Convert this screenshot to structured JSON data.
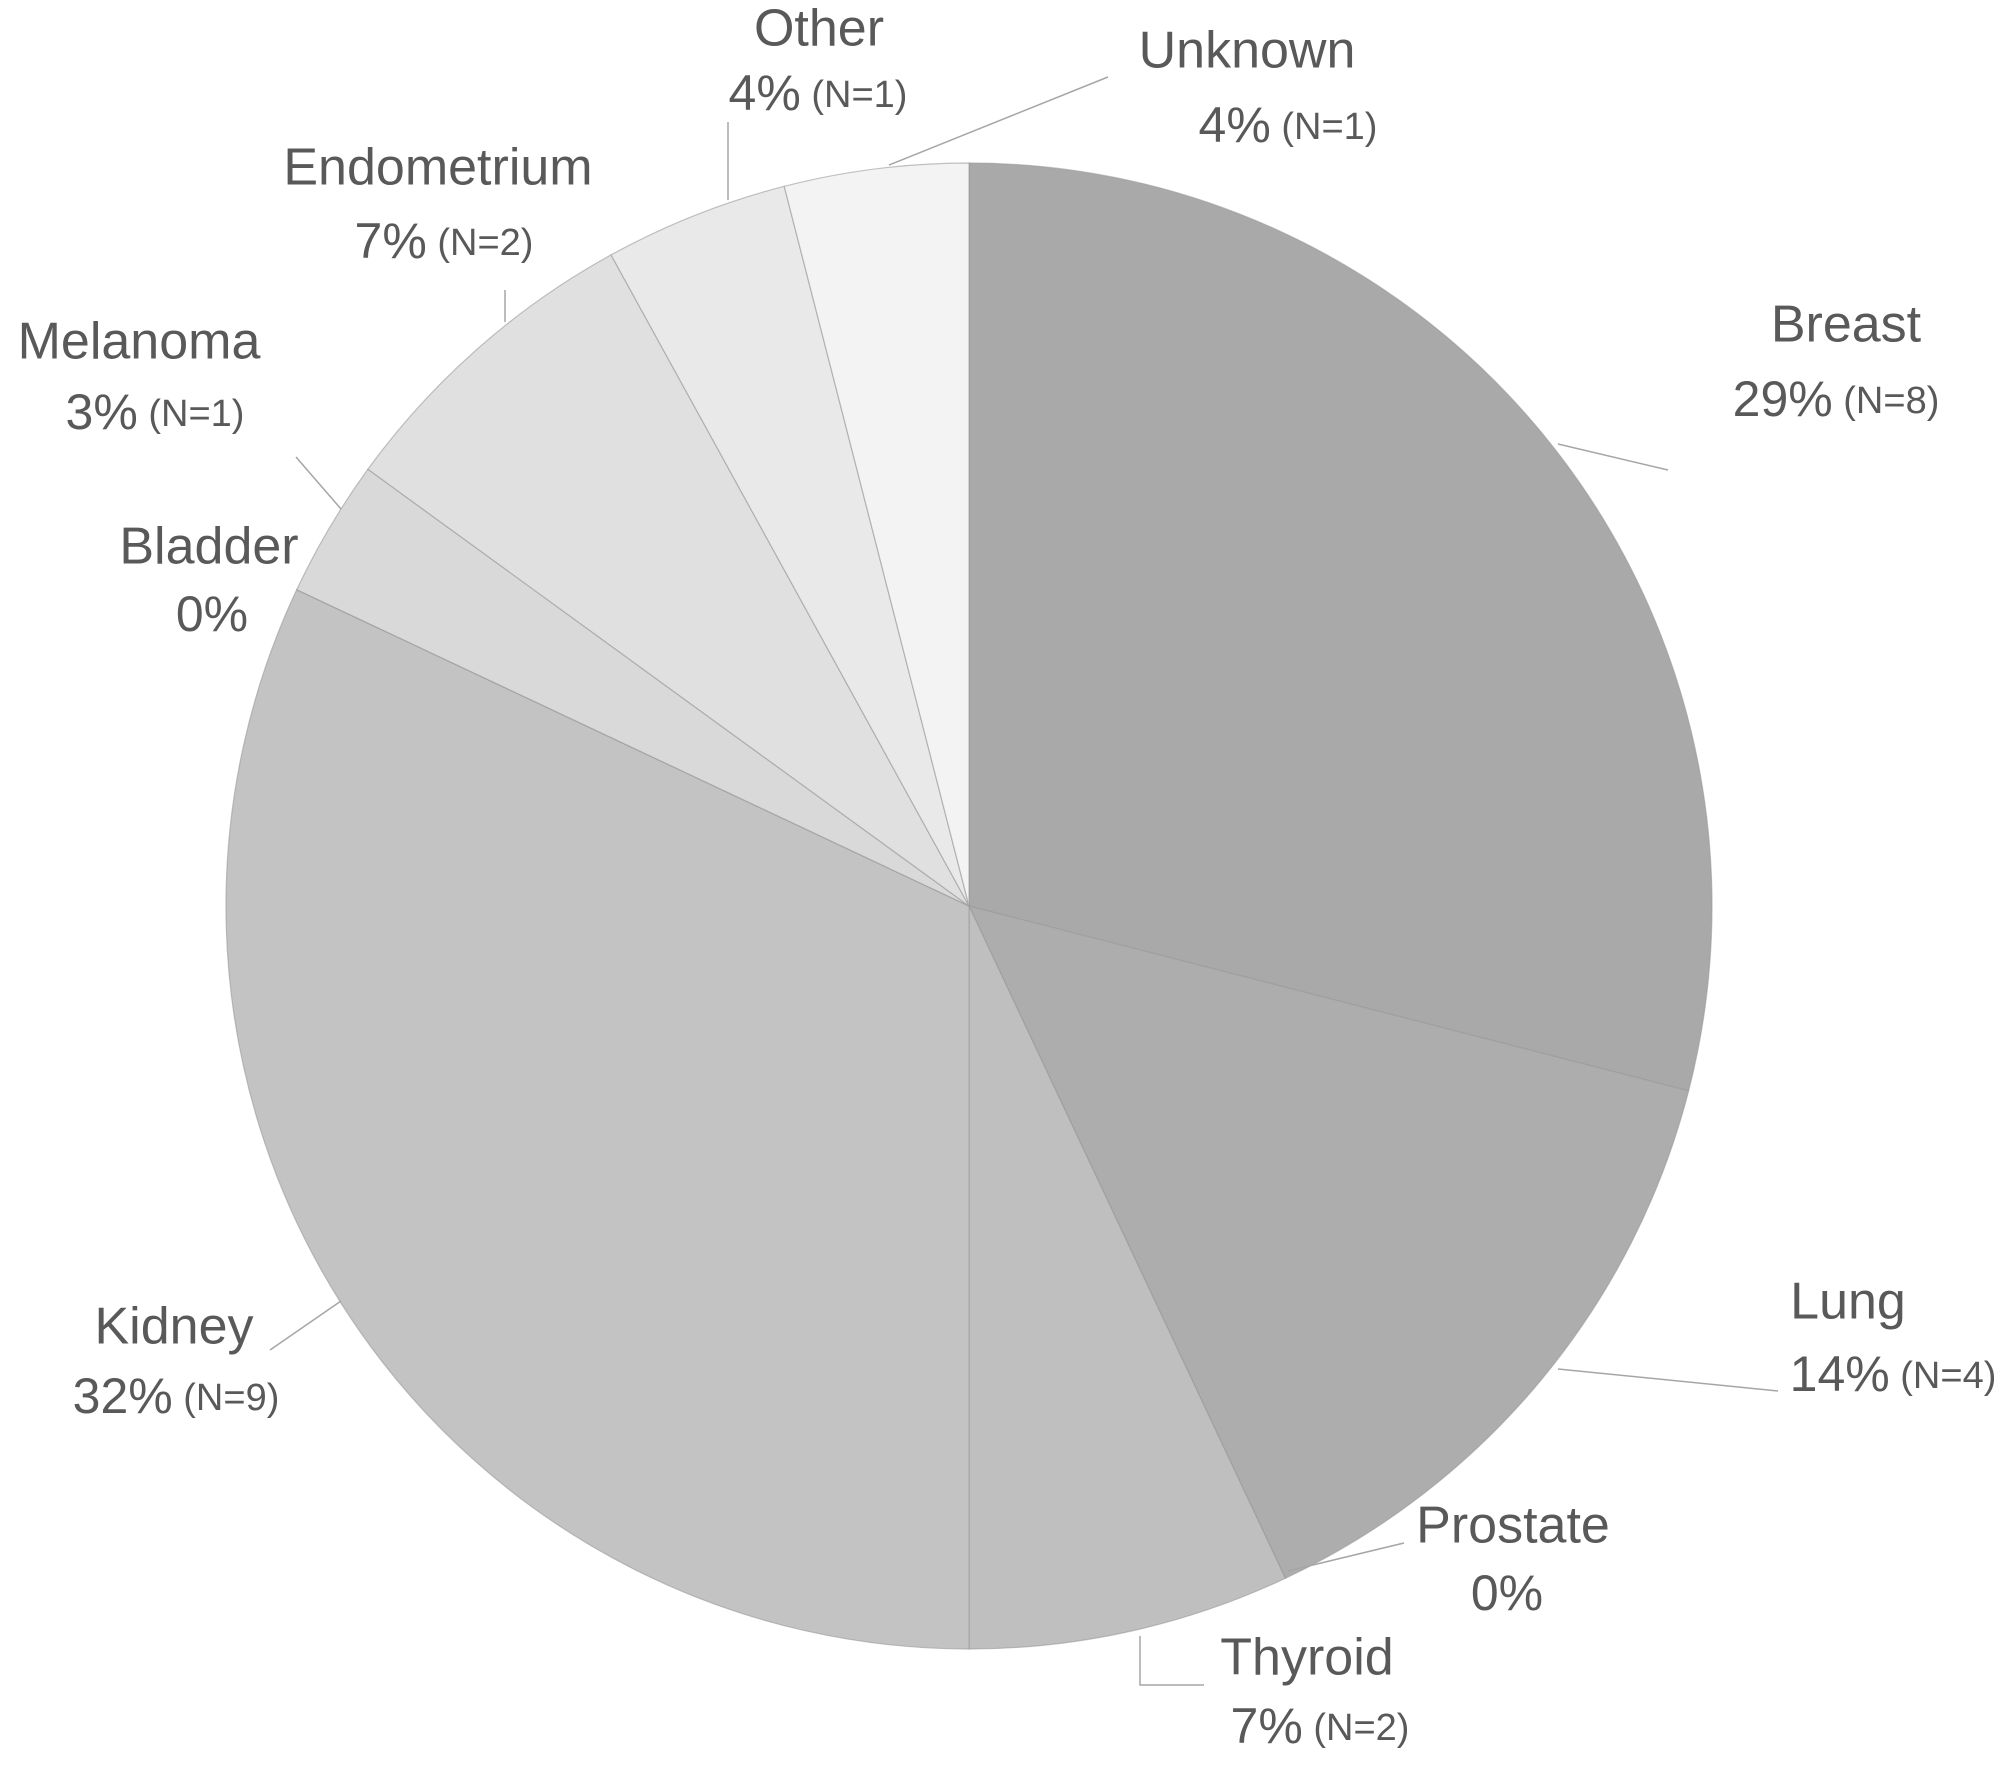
{
  "chart_data": {
    "type": "pie",
    "categories": [
      "Breast",
      "Lung",
      "Prostate",
      "Thyroid",
      "Kidney",
      "Bladder",
      "Melanoma",
      "Endometrium",
      "Other",
      "Unknown"
    ],
    "values": [
      29,
      14,
      0,
      7,
      32,
      0,
      3,
      7,
      4,
      4
    ],
    "value_labels": [
      "29% (N=8)",
      "14% (N=4)",
      "0%",
      "7% (N=2)",
      "32% (N=9)",
      "0%",
      "3% (N=1)",
      "7% (N=2)",
      "4% (N=1)",
      "4% (N=1)"
    ],
    "colors": [
      "#a9a9a9",
      "#adadad",
      "#b8b8b8",
      "#bfbfbf",
      "#c3c3c3",
      "#d6d6d6",
      "#d9d9d9",
      "#e0e0e0",
      "#e9e9e9",
      "#f3f3f3"
    ]
  }
}
